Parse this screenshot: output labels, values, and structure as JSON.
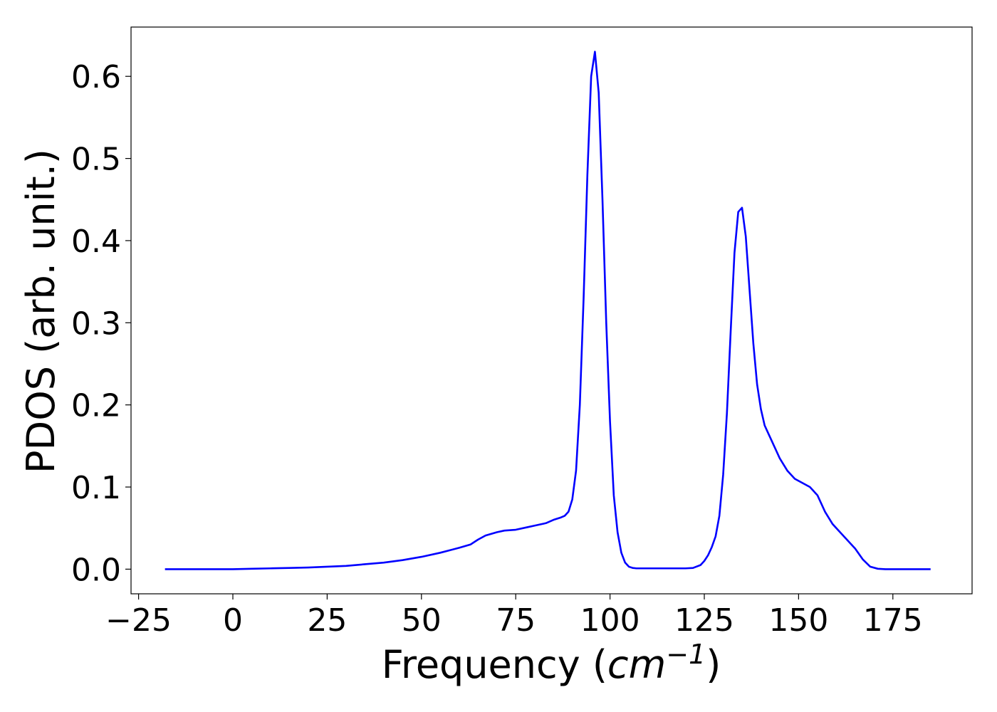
{
  "chart_data": {
    "type": "line",
    "title": "",
    "xlabel": {
      "prefix": "Frequency (",
      "math_base": "cm",
      "math_exponent": "−1",
      "suffix": ")"
    },
    "ylabel": "PDOS (arb. unit.)",
    "xlim": [
      -27,
      196
    ],
    "ylim": [
      -0.03,
      0.66
    ],
    "xticks": [
      -25,
      0,
      25,
      50,
      75,
      100,
      125,
      150,
      175
    ],
    "xtick_labels": [
      "−25",
      "0",
      "25",
      "50",
      "75",
      "100",
      "125",
      "150",
      "175"
    ],
    "yticks": [
      0.0,
      0.1,
      0.2,
      0.3,
      0.4,
      0.5,
      0.6
    ],
    "ytick_labels": [
      "0.0",
      "0.1",
      "0.2",
      "0.3",
      "0.4",
      "0.5",
      "0.6"
    ],
    "grid": false,
    "legend": "none",
    "series": [
      {
        "color": "#0000ff",
        "x": [
          -18,
          -10,
          0,
          5,
          10,
          15,
          20,
          25,
          30,
          35,
          40,
          45,
          50,
          55,
          60,
          63,
          65,
          67,
          70,
          72,
          75,
          78,
          80,
          83,
          85,
          87,
          88,
          89,
          90,
          91,
          92,
          93,
          94,
          95,
          96,
          97,
          98,
          99,
          100,
          101,
          102,
          103,
          104,
          105,
          106,
          107,
          110,
          115,
          120,
          122,
          124,
          125,
          126,
          127,
          128,
          129,
          130,
          131,
          132,
          133,
          134,
          135,
          136,
          137,
          138,
          139,
          140,
          141,
          142,
          143,
          145,
          147,
          149,
          151,
          153,
          155,
          157,
          159,
          161,
          163,
          165,
          167,
          169,
          171,
          173,
          175,
          180,
          185
        ],
        "y": [
          0.0,
          0.0,
          0.0,
          0.0005,
          0.001,
          0.0015,
          0.002,
          0.003,
          0.004,
          0.006,
          0.008,
          0.011,
          0.015,
          0.02,
          0.026,
          0.03,
          0.036,
          0.041,
          0.045,
          0.047,
          0.048,
          0.051,
          0.053,
          0.056,
          0.06,
          0.063,
          0.065,
          0.07,
          0.085,
          0.12,
          0.2,
          0.33,
          0.48,
          0.6,
          0.63,
          0.58,
          0.45,
          0.3,
          0.18,
          0.09,
          0.045,
          0.02,
          0.008,
          0.003,
          0.0015,
          0.001,
          0.001,
          0.001,
          0.001,
          0.0015,
          0.005,
          0.01,
          0.017,
          0.027,
          0.04,
          0.065,
          0.115,
          0.19,
          0.29,
          0.385,
          0.435,
          0.44,
          0.405,
          0.34,
          0.275,
          0.225,
          0.195,
          0.175,
          0.165,
          0.155,
          0.135,
          0.12,
          0.11,
          0.105,
          0.1,
          0.09,
          0.07,
          0.055,
          0.045,
          0.035,
          0.025,
          0.012,
          0.003,
          0.0005,
          0.0,
          0.0,
          0.0,
          0.0
        ]
      }
    ]
  }
}
